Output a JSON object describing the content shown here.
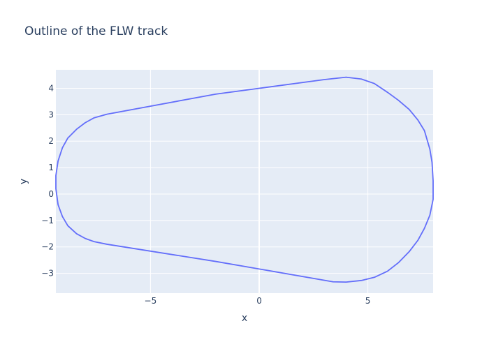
{
  "chart_data": {
    "type": "line",
    "title": "Outline of the FLW track",
    "xlabel": "x",
    "ylabel": "y",
    "xlim": [
      -9.35,
      8.0
    ],
    "ylim": [
      -3.75,
      4.7
    ],
    "grid": true,
    "x_ticks": [
      -5,
      0,
      5
    ],
    "x_tick_labels": [
      "−5",
      "0",
      "5"
    ],
    "y_ticks": [
      -3,
      -2,
      -1,
      0,
      1,
      2,
      3,
      4
    ],
    "y_tick_labels": [
      "−3",
      "−2",
      "−1",
      "0",
      "1",
      "2",
      "3",
      "4"
    ],
    "colors": {
      "plot_bg": "#e5ecf6",
      "grid": "#ffffff",
      "line": "#636efa",
      "text": "#2a3f5f"
    },
    "series": [
      {
        "x": [
          -7.0,
          -7.6,
          -8.0,
          -8.4,
          -8.8,
          -9.05,
          -9.25,
          -9.35,
          -9.35,
          -9.25,
          -9.05,
          -8.8,
          -8.4,
          -8.0,
          -7.6,
          -7.0,
          -2.0,
          3.4,
          4.0,
          4.7,
          5.3,
          5.9,
          6.4,
          6.9,
          7.3,
          7.6,
          7.85,
          8.0,
          8.0,
          7.95,
          7.85,
          7.6,
          7.3,
          6.9,
          6.4,
          5.9,
          5.3,
          4.7,
          4.0,
          3.0,
          -2.0,
          -7.0
        ],
        "y": [
          3.02,
          2.88,
          2.7,
          2.45,
          2.12,
          1.75,
          1.25,
          0.7,
          0.2,
          -0.4,
          -0.85,
          -1.2,
          -1.5,
          -1.68,
          -1.8,
          -1.9,
          -2.55,
          -3.32,
          -3.33,
          -3.27,
          -3.15,
          -2.92,
          -2.6,
          -2.18,
          -1.75,
          -1.3,
          -0.8,
          -0.2,
          0.5,
          1.2,
          1.7,
          2.4,
          2.8,
          3.2,
          3.55,
          3.85,
          4.18,
          4.35,
          4.42,
          4.33,
          3.78,
          3.02
        ]
      }
    ]
  }
}
